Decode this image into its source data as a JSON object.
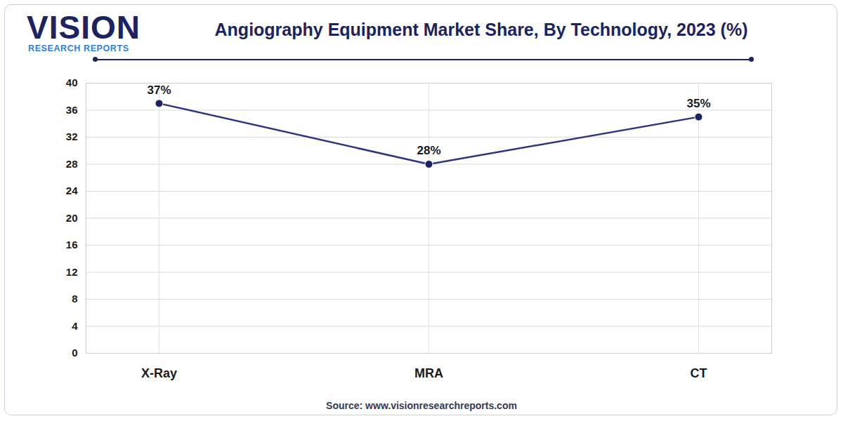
{
  "logo": {
    "name": "VISION",
    "tagline": "RESEARCH REPORTS"
  },
  "chart_data": {
    "type": "line",
    "title": "Angiography Equipment Market Share, By Technology, 2023 (%)",
    "categories": [
      "X-Ray",
      "MRA",
      "CT"
    ],
    "values": [
      37,
      28,
      35
    ],
    "value_labels": [
      "37%",
      "28%",
      "35%"
    ],
    "data_labels": true,
    "color": "#2e3580",
    "marker": "circle",
    "ylim": [
      0,
      40
    ],
    "yticks": [
      0,
      4,
      8,
      12,
      16,
      20,
      24,
      28,
      32,
      36,
      40
    ],
    "grid": true,
    "source": "Source: www.visionresearchreports.com"
  }
}
